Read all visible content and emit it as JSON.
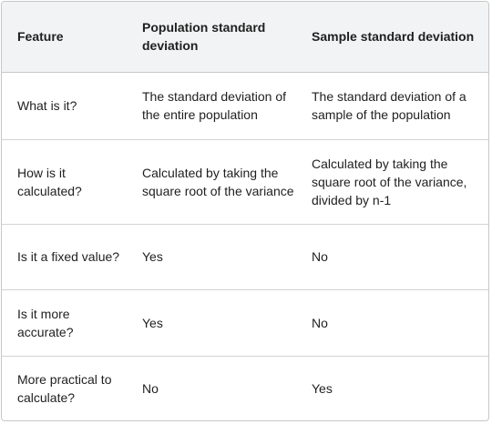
{
  "table": {
    "headers": [
      "Feature",
      "Population standard deviation",
      "Sample standard deviation"
    ],
    "rows": [
      [
        "What is it?",
        "The standard deviation of the entire population",
        "The standard deviation of a sample of the population"
      ],
      [
        "How is it calculated?",
        "Calculated by taking the square root of the variance",
        "Calculated by taking the square root of the variance, divided by n-1"
      ],
      [
        "Is it a fixed value?",
        "Yes",
        "No"
      ],
      [
        "Is it more accurate?",
        "Yes",
        "No"
      ],
      [
        "More practical to calculate?",
        "No",
        "Yes"
      ]
    ]
  }
}
